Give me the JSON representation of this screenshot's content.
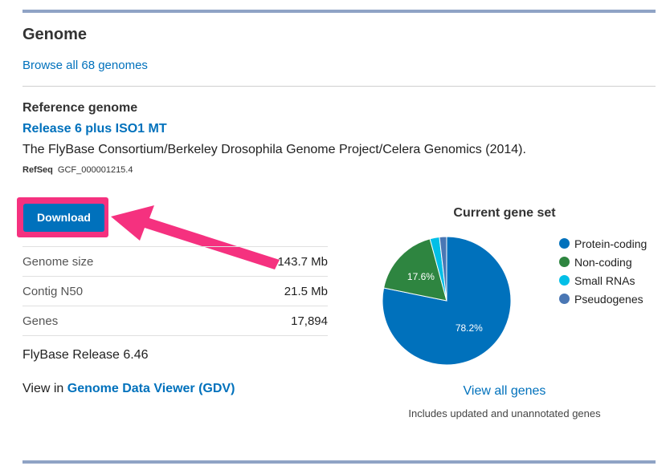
{
  "section": {
    "title": "Genome",
    "browse_link": "Browse all 68 genomes"
  },
  "reference": {
    "heading": "Reference genome",
    "release": "Release 6 plus ISO1 MT",
    "citation": "The FlyBase Consortium/Berkeley Drosophila Genome Project/Celera Genomics (2014).",
    "refseq_label": "RefSeq",
    "refseq_value": "GCF_000001215.4"
  },
  "download": {
    "label": "Download",
    "highlight_color": "#f5317f"
  },
  "stats": [
    {
      "label": "Genome size",
      "value": "143.7 Mb"
    },
    {
      "label": "Contig N50",
      "value": "21.5 Mb"
    },
    {
      "label": "Genes",
      "value": "17,894"
    }
  ],
  "flybase_release": "FlyBase Release 6.46",
  "viewer": {
    "prefix": "View in",
    "link": "Genome Data Viewer (GDV)"
  },
  "chart_data": {
    "type": "pie",
    "title": "Current gene set",
    "categories": [
      "Protein-coding",
      "Non-coding",
      "Small RNAs",
      "Pseudogenes"
    ],
    "values": [
      78.2,
      17.6,
      2.4,
      1.8
    ],
    "labels": [
      "78.2%",
      "17.6%",
      "",
      ""
    ],
    "colors": [
      "#0071bc",
      "#2e8540",
      "#02bfe7",
      "#4a77b4"
    ],
    "legend": "right"
  },
  "view_all_genes": "View all genes",
  "includes_note": "Includes updated and unannotated genes"
}
